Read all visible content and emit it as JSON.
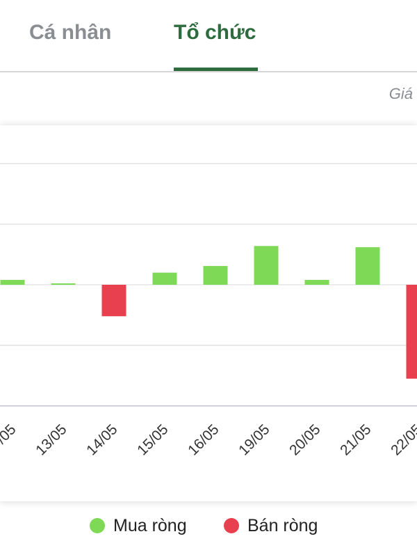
{
  "tabs": [
    {
      "label": "Cá nhân",
      "active": false
    },
    {
      "label": "Tổ chức",
      "active": true
    }
  ],
  "sub_label": "Giá",
  "colors": {
    "buy": "#7ed957",
    "sell": "#e8404f",
    "active_tab": "#2e6b3f",
    "inactive_tab": "#8a8e93"
  },
  "legend": {
    "buy_label": "Mua ròng",
    "sell_label": "Bán ròng"
  },
  "chart_data": {
    "type": "bar",
    "categories": [
      "/05",
      "13/05",
      "14/05",
      "15/05",
      "16/05",
      "19/05",
      "20/05",
      "21/05",
      "22/05"
    ],
    "values": [
      0.08,
      0.02,
      -0.52,
      0.2,
      0.31,
      0.64,
      0.08,
      0.62,
      -1.55
    ],
    "ylim": [
      -2,
      2
    ],
    "grid": true,
    "legend_position": "bottom",
    "series": [
      {
        "name": "Mua ròng",
        "color": "#7ed957"
      },
      {
        "name": "Bán ròng",
        "color": "#e8404f"
      }
    ]
  }
}
